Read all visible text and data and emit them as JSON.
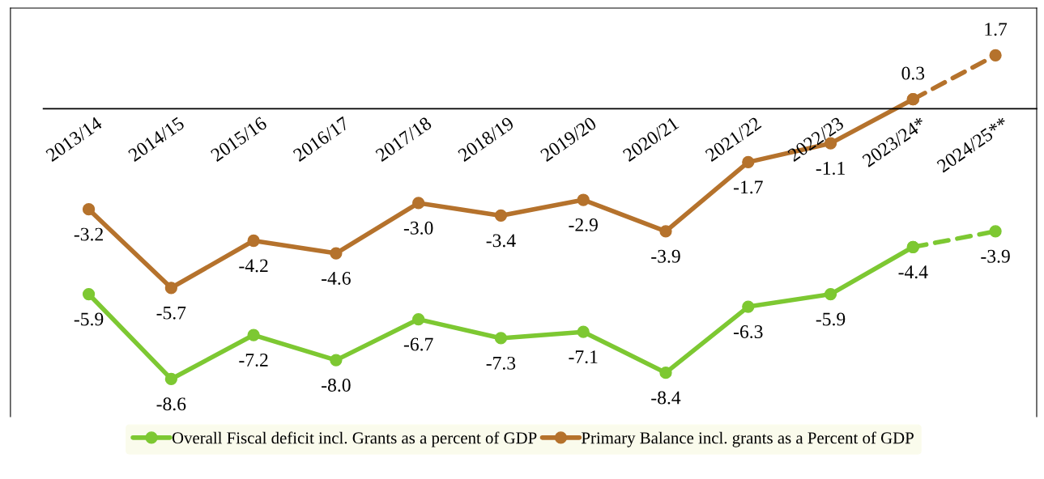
{
  "chart_data": {
    "type": "line",
    "categories": [
      "2013/14",
      "2014/15",
      "2015/16",
      "2016/17",
      "2017/18",
      "2018/19",
      "2019/20",
      "2020/21",
      "2021/22",
      "2022/23",
      "2023/24*",
      "2024/25**"
    ],
    "series": [
      {
        "name": "Overall Fiscal deficit incl. Grants as a percent of GDP",
        "color": "#7dc832",
        "values": [
          -5.9,
          -8.6,
          -7.2,
          -8.0,
          -6.7,
          -7.3,
          -7.1,
          -8.4,
          -6.3,
          -5.9,
          -4.4,
          null
        ],
        "value_labels": [
          "-5.9",
          "-8.6",
          "-7.2",
          "-8.0",
          "-6.7",
          "-7.3",
          "-7.1",
          "-8.4",
          "-6.3",
          "-5.9",
          "-4.4",
          null
        ]
      },
      {
        "name": "Primary Balance incl. grants as a Percent of GDP",
        "color": "#b5722c",
        "values": [
          -3.2,
          -5.7,
          -4.2,
          -4.6,
          -3.0,
          -3.4,
          -2.9,
          -3.9,
          -1.7,
          -1.1,
          0.3,
          null
        ],
        "value_labels": [
          "-3.2",
          "-5.7",
          "-4.2",
          "-4.6",
          "-3.0",
          "-3.4",
          "-2.9",
          "-3.9",
          "-1.7",
          "-1.1",
          "0.3",
          null
        ]
      },
      {
        "color": "#7dc832",
        "line_style": "dashed",
        "values": [
          null,
          null,
          null,
          null,
          null,
          null,
          null,
          null,
          null,
          null,
          -4.4,
          -3.9
        ],
        "value_labels": [
          null,
          null,
          null,
          null,
          null,
          null,
          null,
          null,
          null,
          null,
          null,
          "-3.9"
        ]
      },
      {
        "color": "#b5722c",
        "line_style": "dashed",
        "values": [
          null,
          null,
          null,
          null,
          null,
          null,
          null,
          null,
          null,
          null,
          0.3,
          1.7
        ],
        "value_labels": [
          null,
          null,
          null,
          null,
          null,
          null,
          null,
          null,
          null,
          null,
          null,
          "1.7"
        ]
      }
    ],
    "ylim": [
      -9.8,
      3.2
    ],
    "marker": "circle",
    "line_style": "solid",
    "legend": "bottom",
    "tick_labels": "x"
  }
}
